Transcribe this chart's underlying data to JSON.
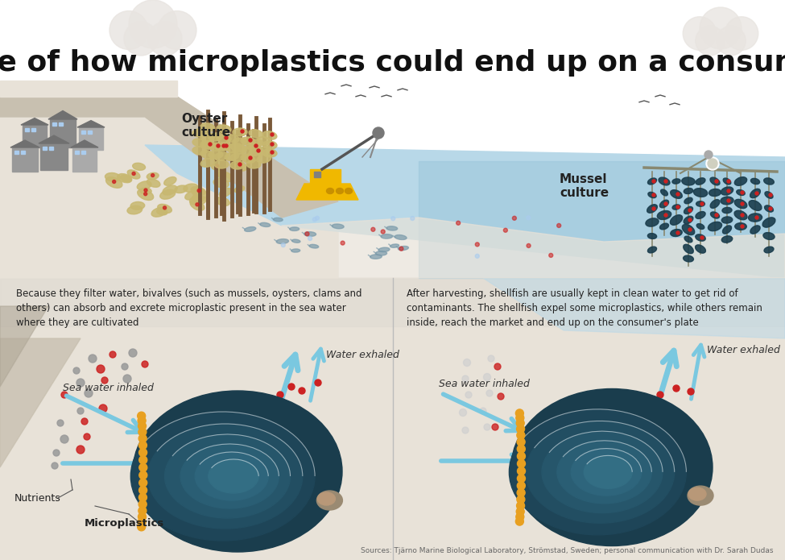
{
  "title": "An example of how microplastics could end up on a consumer's plate",
  "title_fontsize": 26,
  "title_color": "#111111",
  "background_color": "#f5f2ee",
  "water_color_main": "#b8d8e8",
  "water_color_deep": "#9ec8dc",
  "land_color_light": "#e8e2d8",
  "land_color_dark": "#c8c0b0",
  "land_color_slope": "#d8d0c0",
  "text_left": "Because they filter water, bivalves (such as mussels, oysters, clams and\nothers) can absorb and excrete microplastic present in the sea water\nwhere they are cultivated",
  "text_right": "After harvesting, shellfish are usually kept in clean water to get rid of\ncontaminants. The shellfish expel some microplastics, while others remain\ninside, reach the market and end up on the consumer's plate",
  "label_oyster": "Oyster\nculture",
  "label_mussel": "Mussel\nculture",
  "label_swi_left": "Sea water inhaled",
  "label_swi_right": "Sea water inhaled",
  "label_we_left": "Water exhaled",
  "label_we_right": "Water exhaled",
  "label_nutrients": "Nutrients",
  "label_microplastics": "Microplastics",
  "source_text": "Sources: Tjärno Marine Biological Laboratory, Strömstad, Sweden; personal communication with Dr. Sarah Dudas",
  "mussel_body": "#1a3d4d",
  "mussel_ring1": "#1e4558",
  "mussel_ring2": "#224e62",
  "mussel_ring3": "#26566b",
  "mussel_ring4": "#2a5e74",
  "mussel_ring5": "#2e657c",
  "mussel_ring6": "#336e84",
  "mussel_beak": "#9a8a72",
  "mussel_fringe": "#e8a020",
  "arrow_blue": "#7ac8e0",
  "red_dot": "#cc2222",
  "grey_dot": "#999999",
  "white_dot": "#e0e0e0",
  "boat_hull": "#f0b800",
  "boat_cabin": "#808080",
  "oyster_stake": "#7a5a3a",
  "oyster_shell": "#c8b870",
  "fish_color": "#7a9aaa",
  "building_color": "#909090",
  "divider_color": "#bbbbbb"
}
